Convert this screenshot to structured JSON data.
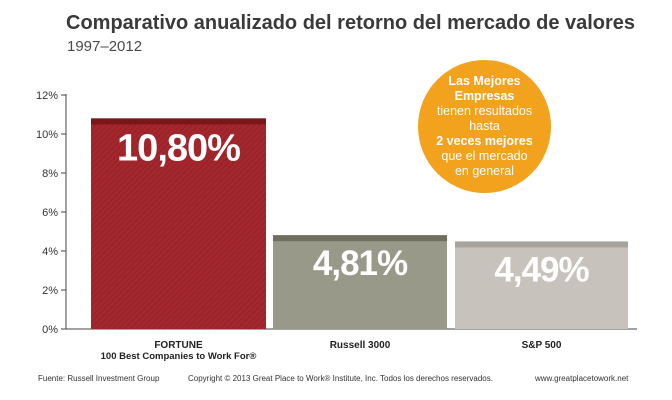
{
  "title": "Comparativo anualizado del retorno del mercado de valores",
  "subtitle": "1997–2012",
  "callout": {
    "line1": "Las Mejores",
    "line2": "Empresas",
    "line3": "tienen resultados",
    "line4": "hasta",
    "line5": "2 veces mejores",
    "line6": "que el mercado",
    "line7": "en general"
  },
  "footer": {
    "source": "Fuente: Russell Investment Group",
    "copyright": "Copyright © 2013 Great Place to Work® Institute, Inc. Todos los derechos reservados.",
    "website": "www.greatplacetowork.net"
  },
  "colors": {
    "fortune": "#a3272c",
    "fortune_top": "#7a1518",
    "russell": "#99998a",
    "russell_top": "#6f6f5f",
    "sp": "#c8c2bd",
    "sp_top": "#a9a39e",
    "axis": "#444444",
    "gridline": "#d0d0d0",
    "badge": "#f2a21d"
  },
  "chart_data": {
    "type": "bar",
    "categories": [
      "FORTUNE\n100 Best Companies to Work For®",
      "Russell 3000",
      "S&P 500"
    ],
    "values": [
      10.8,
      4.81,
      4.49
    ],
    "value_labels": [
      "10,80%",
      "4,81%",
      "4,49%"
    ],
    "y_ticks": [
      0,
      2,
      4,
      6,
      8,
      10,
      12
    ],
    "y_tick_labels": [
      "0%",
      "2%",
      "4%",
      "6%",
      "8%",
      "10%",
      "12%"
    ],
    "ylim": [
      0,
      12
    ],
    "xlabel": "",
    "ylabel": "",
    "grid": false,
    "legend": "none"
  }
}
